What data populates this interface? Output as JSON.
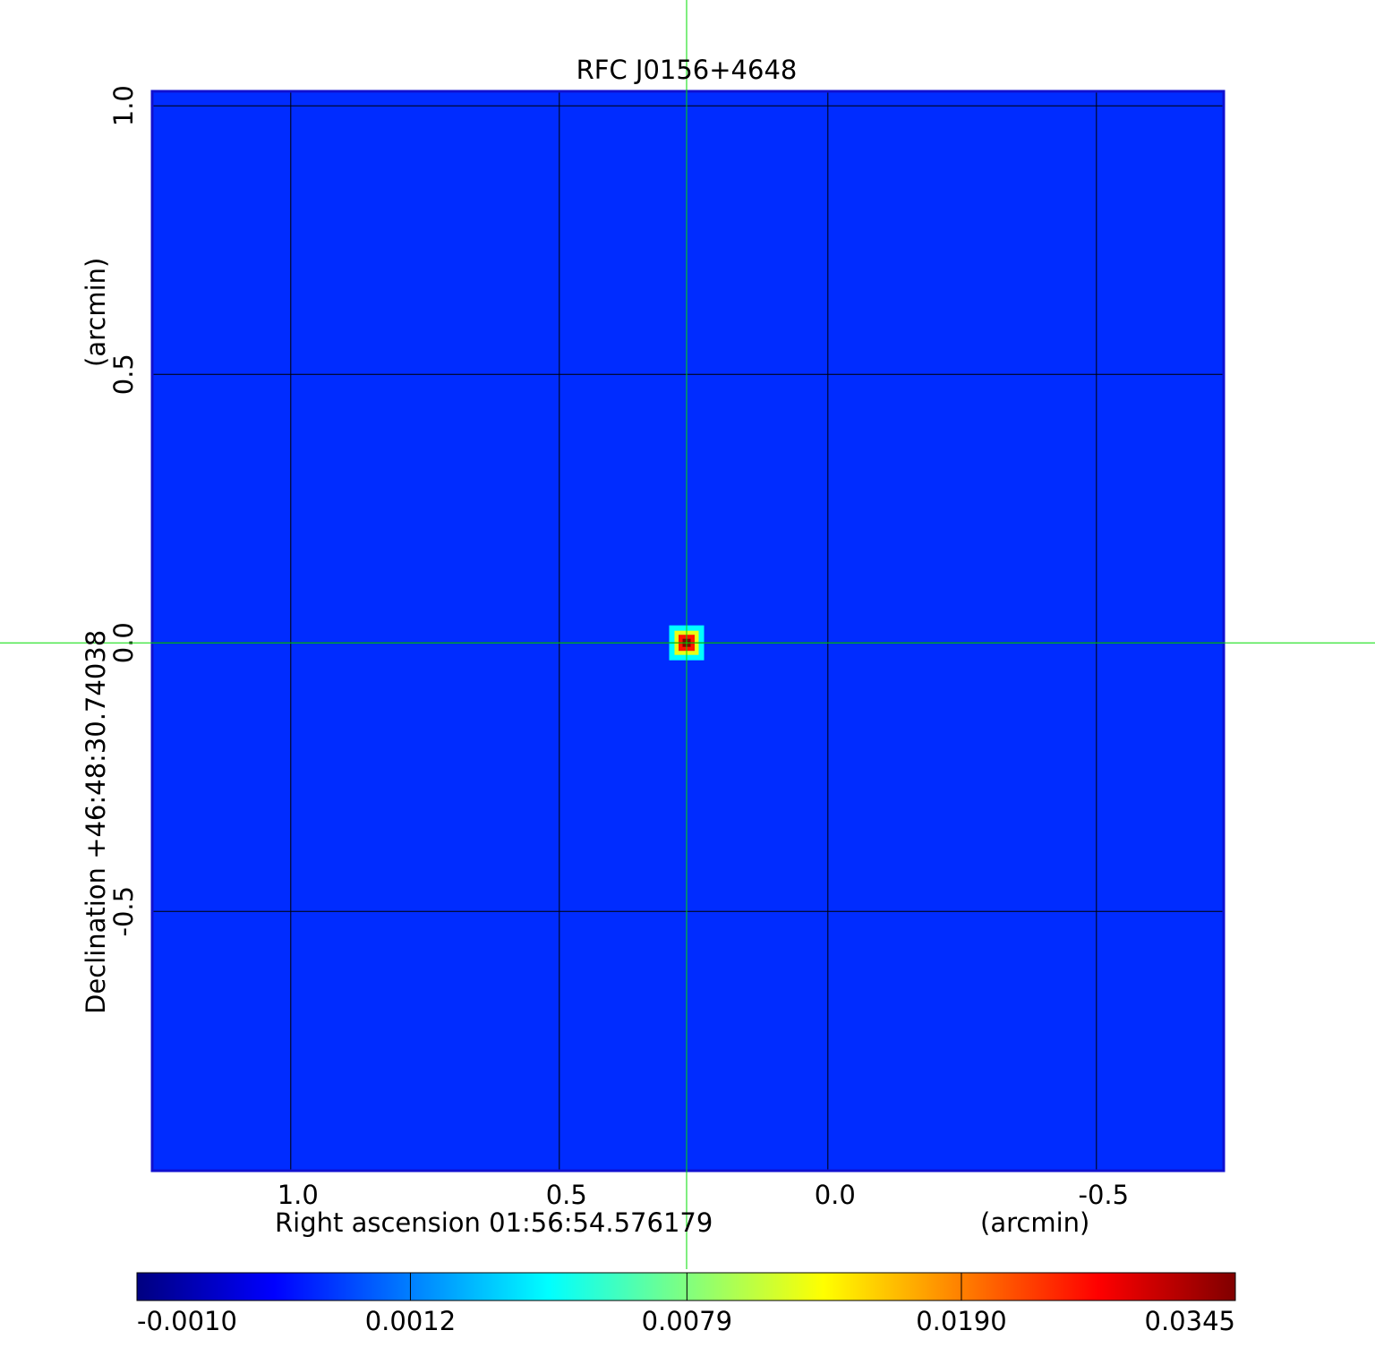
{
  "chart_data": {
    "type": "image",
    "title": "RFC J0156+4648",
    "title_color": "#1010d0",
    "x_label": "Right ascension  01:56:54.576179",
    "x_unit": "(arcmin)",
    "y_label": "Declination  +46:48:30.74038",
    "y_unit": "(arcmin)",
    "xlim": [
      1.258,
      -0.737
    ],
    "ylim": [
      -0.983,
      1.027
    ],
    "xticks": [
      {
        "value": 1,
        "label": "1.0"
      },
      0.5,
      {
        "value": 0,
        "label": "0.0"
      },
      -0.5
    ],
    "yticks": [
      {
        "value": 1,
        "label": "1.0"
      },
      0.5,
      {
        "value": 0,
        "label": "0.0"
      },
      -0.5
    ],
    "grid": true,
    "colormap": "jet",
    "background_value": 0.0,
    "source": {
      "x": 0.263,
      "y": 0.0,
      "values": [
        0.004,
        0.012,
        0.025,
        0.0345
      ],
      "sizes": [
        0.065,
        0.045,
        0.03,
        0.015
      ]
    },
    "crosshair": {
      "x": 0.263,
      "y": 0.0,
      "color": "#00dd00"
    },
    "colorbar": {
      "scale": "sqrt",
      "lim": [
        -0.001,
        0.0345
      ],
      "ticks": [
        {
          "value": -0.001,
          "label": "-0.0010"
        },
        {
          "value": 0.0012,
          "label": "0.0012"
        },
        {
          "value": 0.0079,
          "label": "0.0079"
        },
        {
          "value": 0.019,
          "label": "0.0190"
        },
        {
          "value": 0.0345,
          "label": "0.0345"
        }
      ]
    }
  }
}
